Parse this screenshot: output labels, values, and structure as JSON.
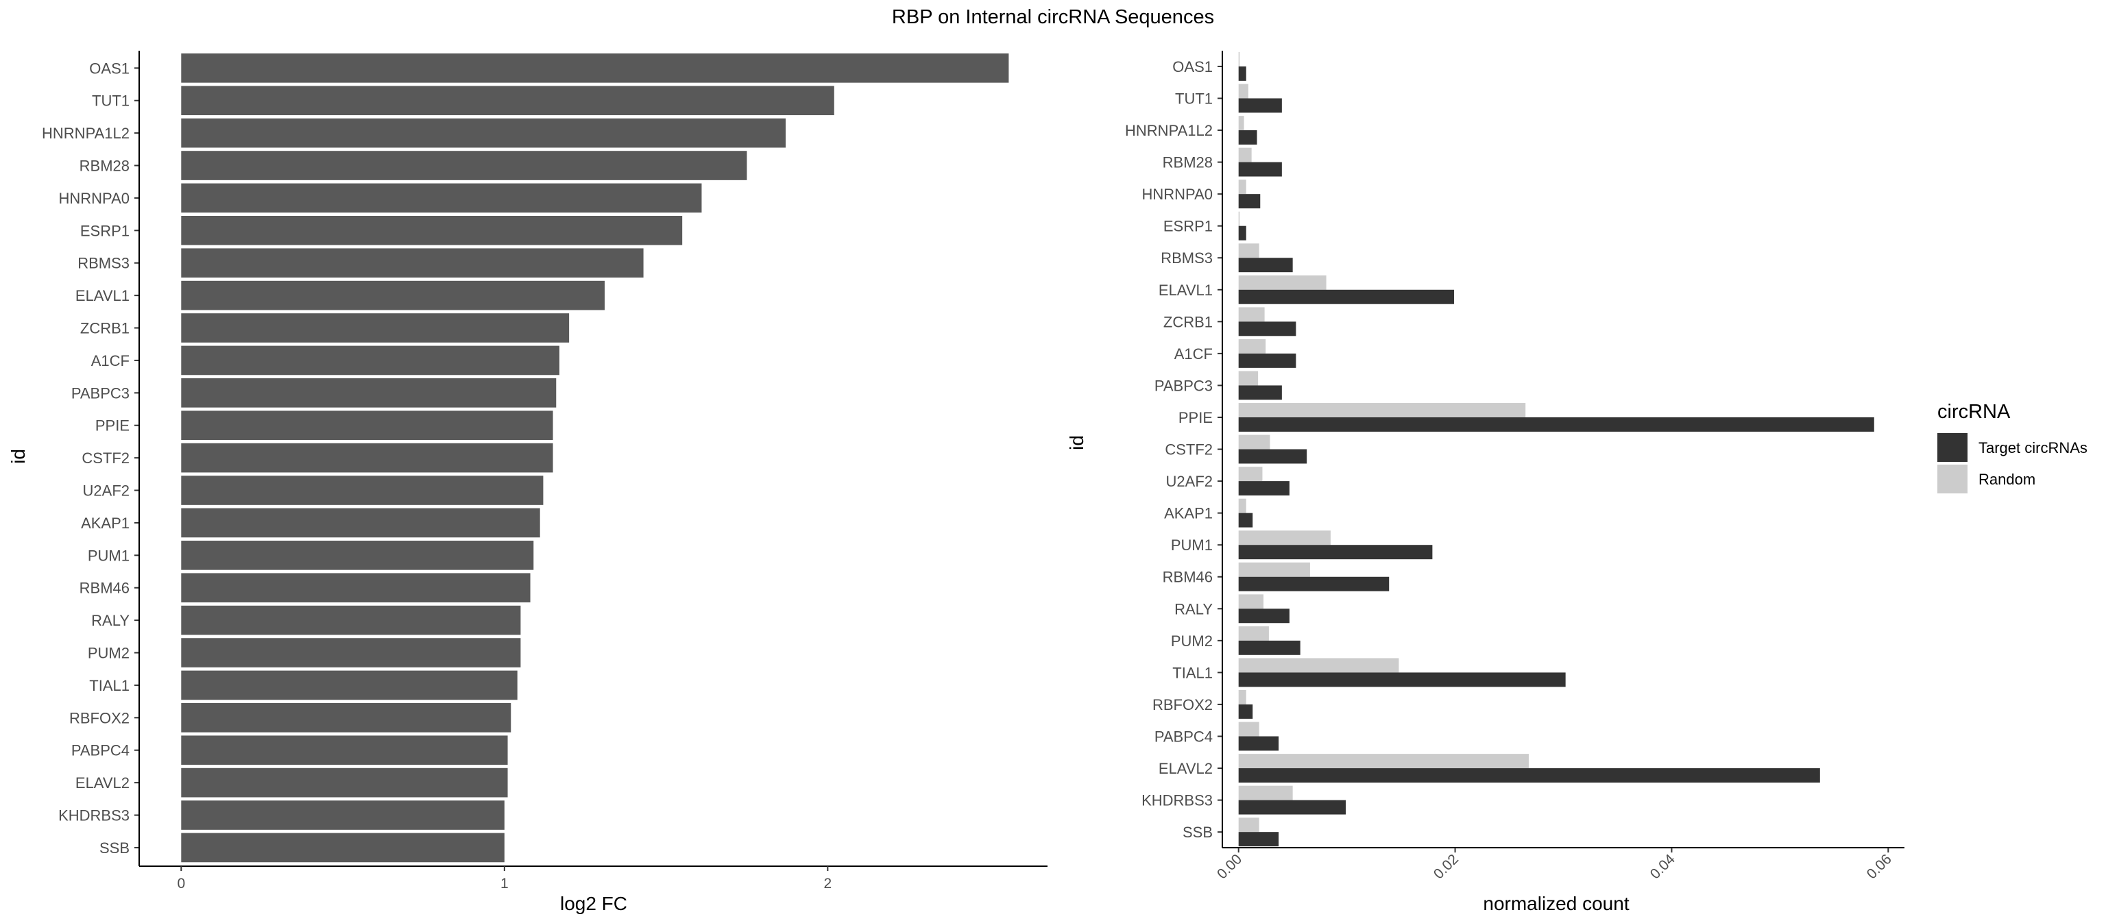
{
  "title": "RBP on Internal circRNA Sequences",
  "chart_data": [
    {
      "type": "bar",
      "orientation": "horizontal",
      "xlabel": "log2 FC",
      "ylabel": "id",
      "xlim": [
        -0.13,
        2.68
      ],
      "xticks": [
        0,
        1,
        2
      ],
      "grid": false,
      "bar_color": "#595959",
      "categories": [
        "OAS1",
        "TUT1",
        "HNRNPA1L2",
        "RBM28",
        "HNRNPA0",
        "ESRP1",
        "RBMS3",
        "ELAVL1",
        "ZCRB1",
        "A1CF",
        "PABPC3",
        "PPIE",
        "CSTF2",
        "U2AF2",
        "AKAP1",
        "PUM1",
        "RBM46",
        "RALY",
        "PUM2",
        "TIAL1",
        "RBFOX2",
        "PABPC4",
        "ELAVL2",
        "KHDRBS3",
        "SSB"
      ],
      "values": [
        2.56,
        2.02,
        1.87,
        1.75,
        1.61,
        1.55,
        1.43,
        1.31,
        1.2,
        1.17,
        1.16,
        1.15,
        1.15,
        1.12,
        1.11,
        1.09,
        1.08,
        1.05,
        1.05,
        1.04,
        1.02,
        1.01,
        1.01,
        1.0,
        1.0
      ]
    },
    {
      "type": "bar",
      "orientation": "horizontal",
      "grouped": true,
      "xlabel": "normalized count",
      "ylabel": "id",
      "xlim": [
        -0.0015,
        0.0615
      ],
      "xticks": [
        "0.00",
        "0.02",
        "0.04",
        "0.06"
      ],
      "xtick_values": [
        0,
        0.02,
        0.04,
        0.06
      ],
      "grid": false,
      "legend_title": "circRNA",
      "legend_position": "right",
      "categories": [
        "OAS1",
        "TUT1",
        "HNRNPA1L2",
        "RBM28",
        "HNRNPA0",
        "ESRP1",
        "RBMS3",
        "ELAVL1",
        "ZCRB1",
        "A1CF",
        "PABPC3",
        "PPIE",
        "CSTF2",
        "U2AF2",
        "AKAP1",
        "PUM1",
        "RBM46",
        "RALY",
        "PUM2",
        "TIAL1",
        "RBFOX2",
        "PABPC4",
        "ELAVL2",
        "KHDRBS3",
        "SSB"
      ],
      "series": [
        {
          "name": "Target circRNAs",
          "color": "#333333",
          "values": [
            0.0007,
            0.004,
            0.0017,
            0.004,
            0.002,
            0.0007,
            0.005,
            0.0199,
            0.0053,
            0.0053,
            0.004,
            0.0587,
            0.0063,
            0.0047,
            0.0013,
            0.0179,
            0.0139,
            0.0047,
            0.0057,
            0.0302,
            0.0013,
            0.0037,
            0.0537,
            0.0099,
            0.0037
          ]
        },
        {
          "name": "Random",
          "color": "#cccccc",
          "values": [
            0.0001,
            0.0009,
            0.0005,
            0.0012,
            0.0007,
            0.0001,
            0.0019,
            0.0081,
            0.0024,
            0.0025,
            0.0018,
            0.0265,
            0.0029,
            0.0022,
            0.0007,
            0.0085,
            0.0066,
            0.0023,
            0.0028,
            0.0148,
            0.0007,
            0.0019,
            0.0268,
            0.005,
            0.0019
          ]
        }
      ]
    }
  ]
}
